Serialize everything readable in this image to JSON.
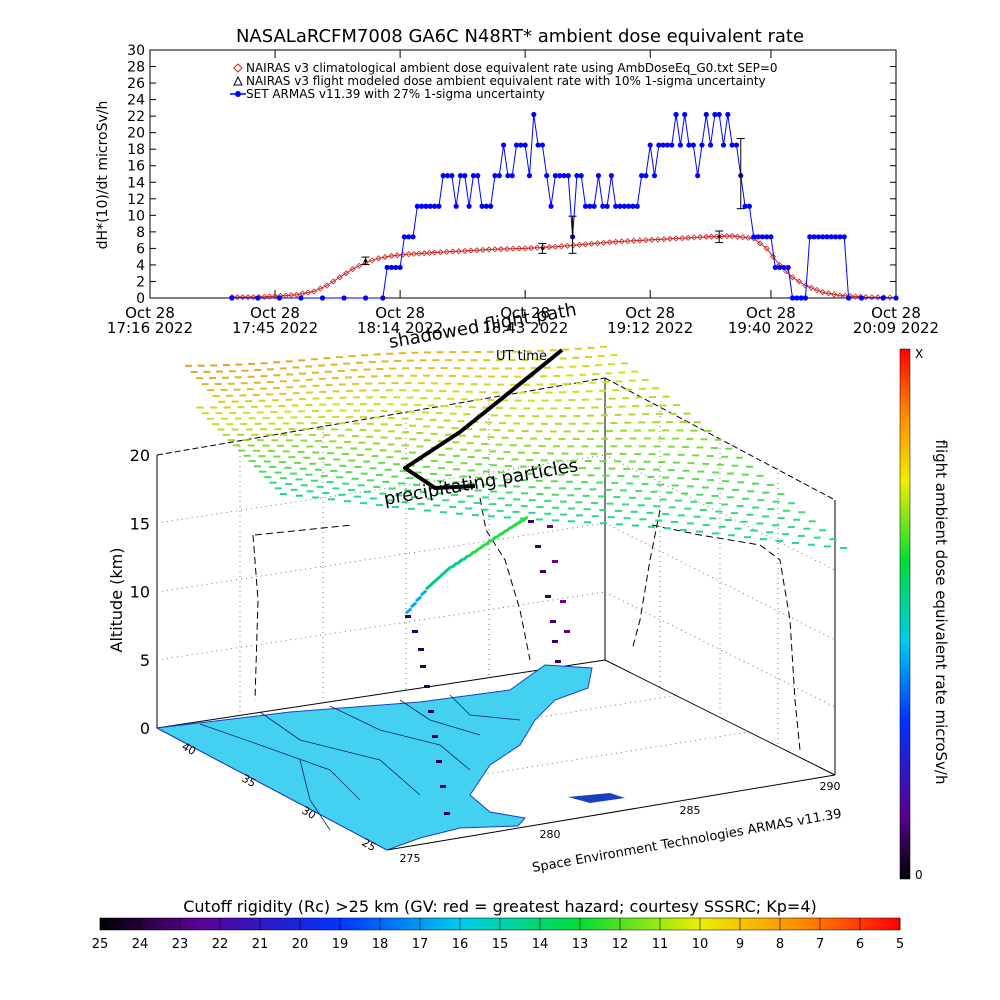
{
  "title": "NASALaRCFM7008  GA6C N48RT* ambient dose equivalent rate",
  "chart_data": [
    {
      "type": "line",
      "ylabel": "dH*(10)/dt microSv/h",
      "ylim": [
        0,
        30
      ],
      "yticks": [
        0,
        2,
        4,
        6,
        8,
        10,
        12,
        14,
        16,
        18,
        20,
        22,
        24,
        26,
        28,
        30
      ],
      "xlim_minutes": [
        0,
        173
      ],
      "xticks": [
        {
          "t": 0,
          "line1": "Oct 28",
          "line2": "17:16 2022"
        },
        {
          "t": 29,
          "line1": "Oct 28",
          "line2": "17:45 2022"
        },
        {
          "t": 58,
          "line1": "Oct 28",
          "line2": "18:14 2022"
        },
        {
          "t": 87,
          "line1": "Oct 28",
          "line2": "18:43 2022"
        },
        {
          "t": 116,
          "line1": "Oct 28",
          "line2": "19:12 2022"
        },
        {
          "t": 144,
          "line1": "Oct 28",
          "line2": "19:40 2022"
        },
        {
          "t": 173,
          "line1": "Oct 28",
          "line2": "20:09 2022"
        }
      ],
      "legend": [
        {
          "label": "NAIRAS v3 climatological ambient dose equivalent rate using AmbDoseEq_G0.txt SEP=0",
          "marker": "diamond",
          "color": "#cc2222"
        },
        {
          "label": "NAIRAS v3 flight modeled dose ambient equivalent rate with 10% 1-sigma uncertainty",
          "marker": "triangle",
          "color": "#000000"
        },
        {
          "label": "SET ARMAS v11.39 with 27% 1-sigma uncertainty",
          "marker": "filled-circle",
          "color": "#0000ff"
        }
      ],
      "series": [
        {
          "name": "NAIRAS v3 climatological ambient dose equivalent rate using AmbDoseEq_G0.txt SEP=0",
          "color": "#cc2222",
          "points": [
            [
              19,
              0.1
            ],
            [
              24,
              0.1
            ],
            [
              29,
              0.2
            ],
            [
              34,
              0.4
            ],
            [
              38,
              0.8
            ],
            [
              41,
              1.5
            ],
            [
              44,
              2.5
            ],
            [
              47,
              3.5
            ],
            [
              50,
              4.3
            ],
            [
              53,
              4.8
            ],
            [
              56,
              5.1
            ],
            [
              60,
              5.3
            ],
            [
              66,
              5.5
            ],
            [
              73,
              5.7
            ],
            [
              80,
              5.9
            ],
            [
              87,
              6.0
            ],
            [
              94,
              6.2
            ],
            [
              101,
              6.5
            ],
            [
              108,
              6.8
            ],
            [
              115,
              7.0
            ],
            [
              122,
              7.2
            ],
            [
              129,
              7.4
            ],
            [
              135,
              7.5
            ],
            [
              140,
              7.2
            ],
            [
              143,
              6.0
            ],
            [
              146,
              4.0
            ],
            [
              149,
              2.5
            ],
            [
              152,
              1.5
            ],
            [
              156,
              0.7
            ],
            [
              160,
              0.3
            ],
            [
              166,
              0.1
            ],
            [
              173,
              0.05
            ]
          ]
        },
        {
          "name": "NAIRAS v3 flight modeled dose ambient equivalent rate with 10% 1-sigma uncertainty",
          "color": "#000000",
          "errorbars": [
            [
              50,
              4.5,
              0.45
            ],
            [
              91,
              6.0,
              0.6
            ],
            [
              132,
              7.4,
              0.7
            ]
          ]
        },
        {
          "name": "SET ARMAS v11.39 with 27% 1-sigma uncertainty",
          "color": "#0000ff",
          "points": [
            [
              19,
              0
            ],
            [
              25,
              0
            ],
            [
              30,
              0
            ],
            [
              35,
              0
            ],
            [
              40,
              0
            ],
            [
              45,
              0
            ],
            [
              50,
              0
            ],
            [
              54,
              0
            ],
            [
              55,
              3.7
            ],
            [
              56,
              3.7
            ],
            [
              57,
              3.7
            ],
            [
              58,
              3.7
            ],
            [
              59,
              7.4
            ],
            [
              60,
              7.4
            ],
            [
              61,
              7.4
            ],
            [
              62,
              11.1
            ],
            [
              63,
              11.1
            ],
            [
              64,
              11.1
            ],
            [
              65,
              11.1
            ],
            [
              66,
              11.1
            ],
            [
              67,
              11.1
            ],
            [
              68,
              14.8
            ],
            [
              69,
              14.8
            ],
            [
              70,
              14.8
            ],
            [
              71,
              11.1
            ],
            [
              72,
              14.8
            ],
            [
              73,
              14.8
            ],
            [
              74,
              11.1
            ],
            [
              75,
              14.8
            ],
            [
              76,
              14.8
            ],
            [
              77,
              11.1
            ],
            [
              78,
              11.1
            ],
            [
              79,
              11.1
            ],
            [
              80,
              14.8
            ],
            [
              81,
              14.8
            ],
            [
              82,
              18.5
            ],
            [
              83,
              14.8
            ],
            [
              84,
              14.8
            ],
            [
              85,
              18.5
            ],
            [
              86,
              18.5
            ],
            [
              87,
              18.5
            ],
            [
              88,
              14.8
            ],
            [
              89,
              22.2
            ],
            [
              90,
              18.5
            ],
            [
              91,
              18.5
            ],
            [
              92,
              14.8
            ],
            [
              93,
              11.1
            ],
            [
              94,
              14.8
            ],
            [
              95,
              14.8
            ],
            [
              96,
              14.8
            ],
            [
              97,
              14.8
            ],
            [
              98,
              7.4
            ],
            [
              99,
              14.8
            ],
            [
              100,
              14.8
            ],
            [
              101,
              11.1
            ],
            [
              102,
              11.1
            ],
            [
              103,
              11.1
            ],
            [
              104,
              14.8
            ],
            [
              105,
              11.1
            ],
            [
              106,
              11.1
            ],
            [
              107,
              14.8
            ],
            [
              108,
              11.1
            ],
            [
              109,
              11.1
            ],
            [
              110,
              11.1
            ],
            [
              111,
              11.1
            ],
            [
              112,
              11.1
            ],
            [
              113,
              11.1
            ],
            [
              114,
              14.8
            ],
            [
              115,
              14.8
            ],
            [
              116,
              18.5
            ],
            [
              117,
              14.8
            ],
            [
              118,
              18.5
            ],
            [
              119,
              18.5
            ],
            [
              120,
              18.5
            ],
            [
              121,
              18.5
            ],
            [
              122,
              22.2
            ],
            [
              123,
              18.5
            ],
            [
              124,
              22.2
            ],
            [
              125,
              18.5
            ],
            [
              126,
              18.5
            ],
            [
              127,
              14.8
            ],
            [
              128,
              18.5
            ],
            [
              129,
              22.2
            ],
            [
              130,
              18.5
            ],
            [
              131,
              22.2
            ],
            [
              132,
              22.2
            ],
            [
              133,
              18.5
            ],
            [
              134,
              22.2
            ],
            [
              135,
              18.5
            ],
            [
              136,
              18.5
            ],
            [
              137,
              14.8
            ],
            [
              138,
              11.1
            ],
            [
              139,
              11.1
            ],
            [
              140,
              7.4
            ],
            [
              141,
              7.4
            ],
            [
              142,
              7.4
            ],
            [
              143,
              7.4
            ],
            [
              144,
              7.4
            ],
            [
              145,
              3.7
            ],
            [
              146,
              3.7
            ],
            [
              147,
              3.7
            ],
            [
              148,
              3.7
            ],
            [
              149,
              0
            ],
            [
              150,
              0
            ],
            [
              151,
              0
            ],
            [
              152,
              0
            ],
            [
              153,
              7.4
            ],
            [
              154,
              7.4
            ],
            [
              155,
              7.4
            ],
            [
              156,
              7.4
            ],
            [
              157,
              7.4
            ],
            [
              158,
              7.4
            ],
            [
              159,
              7.4
            ],
            [
              160,
              7.4
            ],
            [
              161,
              7.4
            ],
            [
              162,
              0
            ],
            [
              165,
              0
            ],
            [
              170,
              0
            ],
            [
              173,
              0
            ]
          ]
        }
      ]
    },
    {
      "type": "scatter3d",
      "zlabel": "Altitude (km)",
      "zticks": [
        "0",
        "5",
        "10",
        "15",
        "20"
      ],
      "lat_ticks": [
        "25",
        "30",
        "35",
        "40"
      ],
      "lon_ticks": [
        "275",
        "280",
        "285",
        "290"
      ],
      "annotations": [
        "shadowed flight path",
        "UT time",
        "precipitating particles"
      ],
      "credit": "Space Environment Technologies ARMAS v11.39",
      "colorbar_label": "flight ambient dose equivalent rate microSv/h",
      "colorbar_top": "X",
      "colorbar_bottom": "0"
    },
    {
      "type": "heatmap",
      "label": "Cutoff rigidity (Rc) >25 km (GV: red = greatest hazard; courtesy SSSRC; Kp=4)",
      "ticks": [
        "25",
        "24",
        "23",
        "22",
        "21",
        "20",
        "19",
        "18",
        "17",
        "16",
        "15",
        "14",
        "13",
        "12",
        "11",
        "10",
        "9",
        "8",
        "7",
        "6",
        "5"
      ]
    }
  ]
}
